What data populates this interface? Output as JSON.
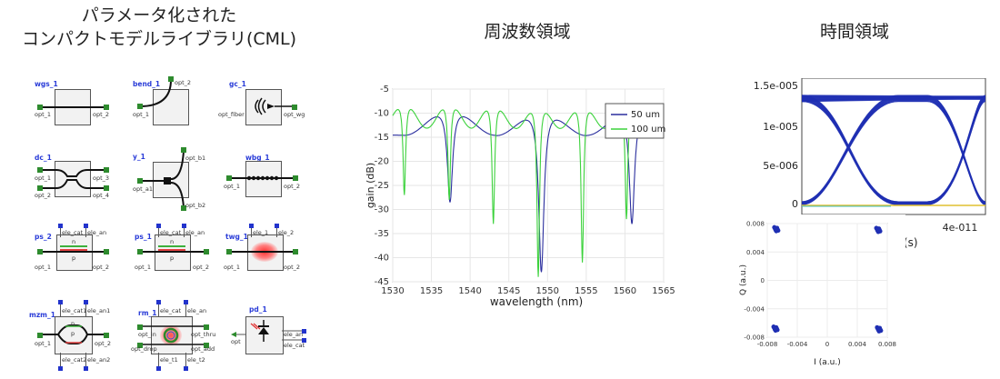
{
  "titles": {
    "cml": [
      "パラメータ化された",
      "コンパクトモデルライブラリ(CML)"
    ],
    "freq": "周波数領域",
    "time": "時間領域"
  },
  "cells": [
    {
      "name": "wgs_1",
      "ports": [
        "opt_1",
        "opt_2"
      ]
    },
    {
      "name": "bend_1",
      "ports": [
        "opt_1",
        "opt_2"
      ]
    },
    {
      "name": "gc_1",
      "ports": [
        "opt_fiber",
        "opt_wg"
      ]
    },
    {
      "name": "dc_1",
      "ports": [
        "opt_1",
        "opt_2",
        "opt_3",
        "opt_4"
      ]
    },
    {
      "name": "y_1",
      "ports": [
        "opt_a1",
        "opt_b1",
        "opt_b2"
      ]
    },
    {
      "name": "wbg_1",
      "ports": [
        "opt_1",
        "opt_2"
      ]
    },
    {
      "name": "ps_2",
      "ports": [
        "ele_cat",
        "ele_an",
        "opt_1",
        "opt_2",
        "n",
        "p"
      ]
    },
    {
      "name": "ps_1",
      "ports": [
        "ele_cat",
        "ele_an",
        "opt_1",
        "opt_2",
        "n",
        "p"
      ]
    },
    {
      "name": "twg_1",
      "ports": [
        "ele_1",
        "ele_2",
        "opt_1",
        "opt_2"
      ]
    },
    {
      "name": "mzm_1",
      "ports": [
        "ele_cat1",
        "ele_an1",
        "opt_1",
        "opt_2",
        "ele_cat2",
        "ele_an2",
        "n",
        "p"
      ]
    },
    {
      "name": "rm_1",
      "ports": [
        "ele_cat",
        "ele_an",
        "opt_in",
        "opt_thru",
        "opt_drop",
        "opt_add",
        "ele_t1",
        "ele_t2"
      ]
    },
    {
      "name": "pd_1",
      "ports": [
        "opt",
        "ele_an",
        "ele_cat"
      ]
    }
  ],
  "freq_chart": {
    "type": "line",
    "xlabel": "wavelength (nm)",
    "ylabel": "gain (dB)",
    "xlim": [
      1530,
      1565
    ],
    "ylim": [
      -45,
      -5
    ],
    "xticks": [
      "1530",
      "1535",
      "1540",
      "1545",
      "1550",
      "1555",
      "1560",
      "1565"
    ],
    "yticks": [
      "-5",
      "-10",
      "-15",
      "-20",
      "-25",
      "-30",
      "-35",
      "-40",
      "-45"
    ],
    "legend_position": "top-right",
    "series": [
      {
        "name": "50 um",
        "color": "#2b2f9e",
        "notches_nm": [
          1537.4,
          1549.2,
          1560.9
        ],
        "notch_depth_db": [
          -28.5,
          -43,
          -33
        ],
        "peak_db": -8.5
      },
      {
        "name": "100 um",
        "color": "#3cd23c",
        "notches_nm": [
          1531.5,
          1537.3,
          1543.0,
          1548.8,
          1554.5,
          1560.2
        ],
        "notch_depth_db": [
          -27,
          -28,
          -33,
          -44,
          -41,
          -32
        ],
        "peak_db": -7
      }
    ]
  },
  "eye_chart": {
    "type": "line",
    "yticks": [
      "1.5e-005",
      "1e-005",
      "5e-006",
      "0"
    ],
    "xticks": [
      "011",
      "4e-011"
    ],
    "xlabel_fragment": "e(s)",
    "color": "#1f2fb3"
  },
  "constellation": {
    "type": "scatter",
    "xlabel": "I (a.u.)",
    "ylabel": "Q (a.u.)",
    "xticks": [
      "-0.008",
      "-0.004",
      "0",
      "0.004",
      "0.008"
    ],
    "yticks": [
      "0.008",
      "0.004",
      "0",
      "-0.004",
      "-0.008"
    ],
    "xlim": [
      -0.008,
      0.008
    ],
    "ylim": [
      -0.008,
      0.008
    ],
    "points": [
      [
        -0.0068,
        0.0072
      ],
      [
        0.0068,
        0.0071
      ],
      [
        -0.0069,
        -0.0068
      ],
      [
        0.0069,
        -0.0069
      ]
    ],
    "color": "#1f2fb3"
  }
}
